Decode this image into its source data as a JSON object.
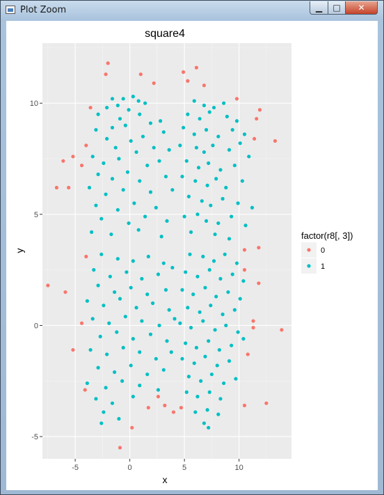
{
  "window": {
    "title": "Plot Zoom",
    "minimize_label": "▁",
    "maximize_label": "□",
    "close_label": "✕"
  },
  "chart_data": {
    "type": "scatter",
    "title": "square4",
    "xlabel": "x",
    "ylabel": "y",
    "xlim": [
      -8,
      14.8
    ],
    "ylim": [
      -6,
      12.7
    ],
    "xticks": [
      -5,
      0,
      5,
      10
    ],
    "yticks": [
      -5,
      0,
      5,
      10
    ],
    "grid": true,
    "legend": {
      "title": "factor(r8[, 3])",
      "position": "right",
      "entries": [
        {
          "label": "0",
          "color": "#F8766D"
        },
        {
          "label": "1",
          "color": "#00BFC4"
        }
      ]
    },
    "series": [
      {
        "name": "0",
        "color": "#F8766D",
        "points": [
          [
            -2,
            11.8
          ],
          [
            -2.2,
            11.3
          ],
          [
            1,
            11.3
          ],
          [
            2.2,
            10.9
          ],
          [
            4.9,
            11.4
          ],
          [
            5.3,
            11
          ],
          [
            6.1,
            11.6
          ],
          [
            6.8,
            10.8
          ],
          [
            9.8,
            10.2
          ],
          [
            -3.6,
            9.8
          ],
          [
            11.9,
            9.7
          ],
          [
            11.6,
            9.3
          ],
          [
            11.4,
            8.4
          ],
          [
            13.3,
            8.3
          ],
          [
            -4,
            8.1
          ],
          [
            -5.2,
            7.6
          ],
          [
            -6.1,
            7.4
          ],
          [
            -4.4,
            7.2
          ],
          [
            -6.7,
            6.2
          ],
          [
            -5.6,
            6.2
          ],
          [
            -4,
            3.1
          ],
          [
            -7.5,
            1.8
          ],
          [
            -5.9,
            1.5
          ],
          [
            11.8,
            1.9
          ],
          [
            10.5,
            2.5
          ],
          [
            10.5,
            3.4
          ],
          [
            11.8,
            3.5
          ],
          [
            -4.4,
            0.1
          ],
          [
            11.3,
            0.2
          ],
          [
            11.3,
            -0.1
          ],
          [
            13.9,
            -0.2
          ],
          [
            -5.2,
            -1.1
          ],
          [
            10.8,
            -1.3
          ],
          [
            -4.1,
            -2.9
          ],
          [
            2.6,
            -3.2
          ],
          [
            1.7,
            -3.7
          ],
          [
            3.2,
            -3.6
          ],
          [
            4,
            -3.9
          ],
          [
            4.7,
            -3.7
          ],
          [
            10.5,
            -3.6
          ],
          [
            12.5,
            -3.5
          ],
          [
            0.2,
            -4.6
          ],
          [
            -0.9,
            -5.5
          ]
        ]
      },
      {
        "name": "1",
        "color": "#00BFC4",
        "points": [
          [
            -1.6,
            10.2
          ],
          [
            -0.6,
            10.2
          ],
          [
            0.3,
            10.3
          ],
          [
            0.8,
            10.1
          ],
          [
            -2.1,
            9.8
          ],
          [
            -1.1,
            9.9
          ],
          [
            -0.1,
            9.7
          ],
          [
            1.4,
            10
          ],
          [
            -2.9,
            9.5
          ],
          [
            -0.9,
            9.3
          ],
          [
            0.9,
            9.5
          ],
          [
            -1.6,
            8.9
          ],
          [
            -0.4,
            9
          ],
          [
            1.9,
            9.1
          ],
          [
            2.8,
            9.2
          ],
          [
            -3.1,
            8.8
          ],
          [
            -2.1,
            8.4
          ],
          [
            0.1,
            8.3
          ],
          [
            1.2,
            8.5
          ],
          [
            3.1,
            8.7
          ],
          [
            -1.3,
            8
          ],
          [
            0.6,
            7.8
          ],
          [
            2.2,
            8
          ],
          [
            3.6,
            7.9
          ],
          [
            -3.4,
            7.6
          ],
          [
            -2.4,
            7.3
          ],
          [
            -1,
            7.5
          ],
          [
            1.6,
            7.2
          ],
          [
            2.7,
            7.4
          ],
          [
            -2.9,
            6.8
          ],
          [
            -1.6,
            6.6
          ],
          [
            -0.2,
            6.9
          ],
          [
            0.9,
            6.5
          ],
          [
            3.3,
            6.7
          ],
          [
            -3.7,
            6.2
          ],
          [
            -2.2,
            5.9
          ],
          [
            -0.6,
            6.1
          ],
          [
            1.9,
            6
          ],
          [
            3.9,
            6.1
          ],
          [
            -3.1,
            5.4
          ],
          [
            -1.1,
            5.2
          ],
          [
            0.4,
            5.5
          ],
          [
            2.4,
            5.3
          ],
          [
            -2.6,
            4.8
          ],
          [
            -0.1,
            4.6
          ],
          [
            1.4,
            4.9
          ],
          [
            3.4,
            4.7
          ],
          [
            -3.5,
            4.2
          ],
          [
            -1.7,
            4.1
          ],
          [
            0.8,
            4.3
          ],
          [
            2.9,
            4
          ],
          [
            5.9,
            10.1
          ],
          [
            6.8,
            9.9
          ],
          [
            7.7,
            9.8
          ],
          [
            8.6,
            10
          ],
          [
            5.3,
            9.5
          ],
          [
            6.4,
            9.3
          ],
          [
            7.3,
            9.6
          ],
          [
            8.9,
            9.4
          ],
          [
            9.8,
            9.2
          ],
          [
            4.9,
            8.9
          ],
          [
            5.9,
            8.6
          ],
          [
            7,
            8.8
          ],
          [
            8.1,
            8.5
          ],
          [
            9.4,
            8.8
          ],
          [
            10.5,
            8.6
          ],
          [
            4.6,
            8.1
          ],
          [
            6.1,
            8
          ],
          [
            6.8,
            7.8
          ],
          [
            7.6,
            8.1
          ],
          [
            9.1,
            7.9
          ],
          [
            10.1,
            8.2
          ],
          [
            5.2,
            7.4
          ],
          [
            6.3,
            7.1
          ],
          [
            7.2,
            7.3
          ],
          [
            8.3,
            7
          ],
          [
            9.6,
            7.2
          ],
          [
            10.9,
            7.6
          ],
          [
            4.8,
            6.7
          ],
          [
            6,
            6.5
          ],
          [
            7.1,
            6.3
          ],
          [
            7.9,
            6.6
          ],
          [
            8.8,
            6.2
          ],
          [
            10.3,
            6.5
          ],
          [
            5.4,
            5.8
          ],
          [
            6.6,
            5.6
          ],
          [
            7.4,
            5.4
          ],
          [
            8.5,
            5.7
          ],
          [
            9.9,
            5.5
          ],
          [
            11.2,
            5.3
          ],
          [
            5,
            4.9
          ],
          [
            6.2,
            5
          ],
          [
            7,
            4.7
          ],
          [
            8.1,
            4.6
          ],
          [
            9.3,
            4.9
          ],
          [
            10.6,
            4.5
          ],
          [
            5.6,
            4.2
          ],
          [
            7.8,
            4.1
          ],
          [
            9.1,
            3.9
          ],
          [
            -2.6,
            3.2
          ],
          [
            -1.1,
            3
          ],
          [
            0.3,
            2.9
          ],
          [
            1.7,
            3.1
          ],
          [
            3.1,
            2.8
          ],
          [
            -3.3,
            2.5
          ],
          [
            -1.8,
            2.2
          ],
          [
            -0.3,
            2.4
          ],
          [
            1.1,
            2.1
          ],
          [
            2.6,
            2.3
          ],
          [
            3.9,
            2.6
          ],
          [
            -2.9,
            1.8
          ],
          [
            -1.4,
            1.5
          ],
          [
            0.1,
            1.7
          ],
          [
            1.6,
            1.4
          ],
          [
            3.3,
            1.6
          ],
          [
            -3.9,
            1.1
          ],
          [
            -2.4,
            0.9
          ],
          [
            -0.9,
            1.2
          ],
          [
            0.6,
            0.8
          ],
          [
            2.1,
            1
          ],
          [
            3.6,
            0.7
          ],
          [
            -3.4,
            0.3
          ],
          [
            -1.9,
            0.1
          ],
          [
            -0.4,
            0.4
          ],
          [
            1.1,
            0.2
          ],
          [
            2.7,
            0
          ],
          [
            4.1,
            0.3
          ],
          [
            -2.7,
            -0.5
          ],
          [
            -1.2,
            -0.3
          ],
          [
            0.3,
            -0.6
          ],
          [
            1.9,
            -0.4
          ],
          [
            3.4,
            -0.7
          ],
          [
            -3.6,
            -1.1
          ],
          [
            -2.1,
            -1.3
          ],
          [
            -0.6,
            -1
          ],
          [
            0.9,
            -1.2
          ],
          [
            2.4,
            -1.5
          ],
          [
            3.8,
            -1.2
          ],
          [
            -2.9,
            -1.9
          ],
          [
            -1.4,
            -2.1
          ],
          [
            0.1,
            -1.8
          ],
          [
            1.6,
            -2.2
          ],
          [
            3.1,
            -2
          ],
          [
            -3.9,
            -2.6
          ],
          [
            -2.2,
            -2.8
          ],
          [
            -0.7,
            -2.5
          ],
          [
            0.9,
            -2.7
          ],
          [
            2.6,
            -2.9
          ],
          [
            -3.1,
            -3.3
          ],
          [
            -1.6,
            -3.5
          ],
          [
            0.3,
            -3.2
          ],
          [
            -2.4,
            -3.9
          ],
          [
            -1,
            -4.2
          ],
          [
            -2.6,
            -4.4
          ],
          [
            5.5,
            3.2
          ],
          [
            6.7,
            3.1
          ],
          [
            7.7,
            2.9
          ],
          [
            8.7,
            3.2
          ],
          [
            9.8,
            2.8
          ],
          [
            5.1,
            2.4
          ],
          [
            6.2,
            2.2
          ],
          [
            7.3,
            2.5
          ],
          [
            8.3,
            2.1
          ],
          [
            9.4,
            2.3
          ],
          [
            10.4,
            2
          ],
          [
            4.8,
            1.6
          ],
          [
            5.8,
            1.4
          ],
          [
            6.9,
            1.7
          ],
          [
            7.9,
            1.3
          ],
          [
            9,
            1.5
          ],
          [
            10.1,
            1.2
          ],
          [
            5.3,
            0.8
          ],
          [
            6.4,
            0.6
          ],
          [
            7.4,
            0.9
          ],
          [
            8.5,
            0.5
          ],
          [
            9.6,
            0.7
          ],
          [
            4.6,
            0.1
          ],
          [
            5.6,
            -0.1
          ],
          [
            6.7,
            0.2
          ],
          [
            7.8,
            -0.2
          ],
          [
            8.8,
            0
          ],
          [
            9.9,
            -0.3
          ],
          [
            5.1,
            -0.8
          ],
          [
            6.1,
            -1
          ],
          [
            7.2,
            -0.7
          ],
          [
            8.2,
            -1.1
          ],
          [
            9.3,
            -0.9
          ],
          [
            10.4,
            -0.6
          ],
          [
            4.8,
            -1.5
          ],
          [
            5.9,
            -1.7
          ],
          [
            6.9,
            -1.4
          ],
          [
            8,
            -1.8
          ],
          [
            9.1,
            -1.6
          ],
          [
            5.4,
            -2.3
          ],
          [
            6.5,
            -2.5
          ],
          [
            7.5,
            -2.2
          ],
          [
            8.6,
            -2.6
          ],
          [
            9.7,
            -2.4
          ],
          [
            5.2,
            -3
          ],
          [
            6.2,
            -3.2
          ],
          [
            7.3,
            -3
          ],
          [
            8.3,
            -3.3
          ],
          [
            6,
            -3.9
          ],
          [
            7.1,
            -3.8
          ],
          [
            8.1,
            -4
          ],
          [
            7.2,
            -4.6
          ],
          [
            6.8,
            -4.4
          ]
        ]
      }
    ]
  }
}
